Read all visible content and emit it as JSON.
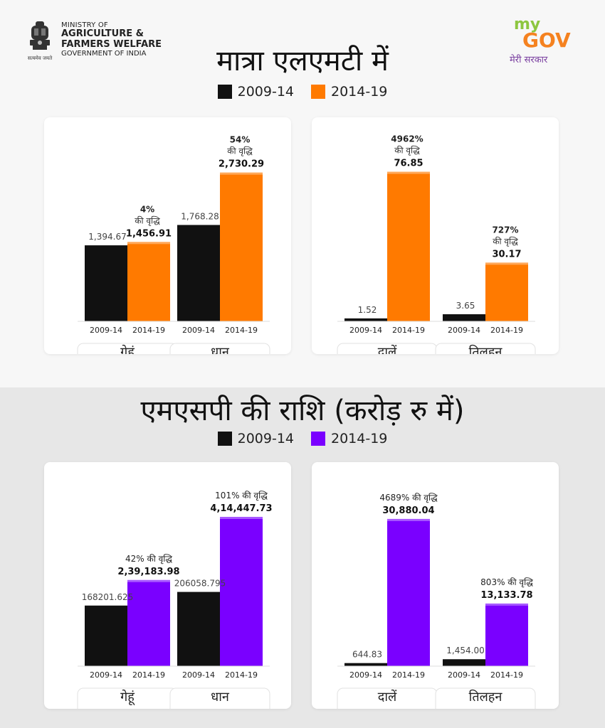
{
  "header": {
    "emblem_caption": "सत्यमेव जयते",
    "ministry_line1": "MINISTRY OF",
    "ministry_line2": "AGRICULTURE &",
    "ministry_line3": "FARMERS WELFARE",
    "ministry_line4": "GOVERNMENT OF INDIA",
    "mygov_my": "my",
    "mygov_gov": "GOV",
    "mygov_tagline": "मेरी सरकार"
  },
  "colors": {
    "black": "#111111",
    "orange": "#ff7a00",
    "purple": "#7a00ff",
    "mygov_green": "#8dc63f",
    "mygov_orange": "#f58220"
  },
  "section1": {
    "title": "मात्रा एलएमटी में",
    "legend": [
      {
        "label": "2009-14",
        "color": "#111111"
      },
      {
        "label": "2014-19",
        "color": "#ff7a00"
      }
    ]
  },
  "section2": {
    "title": "एमएसपी की राशि (करोड़ रु में)",
    "legend": [
      {
        "label": "2009-14",
        "color": "#111111"
      },
      {
        "label": "2014-19",
        "color": "#7a00ff"
      }
    ]
  },
  "chart_data": [
    {
      "type": "bar",
      "section": "section1",
      "categories": [
        "गेहूं",
        "धान"
      ],
      "x_tick_labels": [
        "2009-14",
        "2014-19"
      ],
      "series": [
        {
          "name": "2009-14",
          "values": [
            1394.67,
            1768.28
          ],
          "labels": [
            "1,394.67",
            "1,768.28"
          ]
        },
        {
          "name": "2014-19",
          "values": [
            1456.91,
            2730.29
          ],
          "labels": [
            "1,456.91",
            "2,730.29"
          ]
        }
      ],
      "growth_labels": [
        [
          "4%",
          "की वृद्धि"
        ],
        [
          "54%",
          "की वृद्धि"
        ]
      ],
      "ylim": [
        0,
        3000
      ]
    },
    {
      "type": "bar",
      "section": "section1",
      "categories": [
        "दालें",
        "तिलहन"
      ],
      "x_tick_labels": [
        "2009-14",
        "2014-19"
      ],
      "series": [
        {
          "name": "2009-14",
          "values": [
            1.52,
            3.65
          ],
          "labels": [
            "1.52",
            "3.65"
          ]
        },
        {
          "name": "2014-19",
          "values": [
            76.85,
            30.17
          ],
          "labels": [
            "76.85",
            "30.17"
          ]
        }
      ],
      "growth_labels": [
        [
          "4962%",
          "की वृद्धि"
        ],
        [
          "727%",
          "की वृद्धि"
        ]
      ],
      "ylim": [
        0,
        84
      ]
    },
    {
      "type": "bar",
      "section": "section2",
      "categories": [
        "गेहूं",
        "धान"
      ],
      "x_tick_labels": [
        "2009-14",
        "2014-19"
      ],
      "series": [
        {
          "name": "2009-14",
          "values": [
            168201.625,
            206058.795
          ],
          "labels": [
            "168201.625",
            "206058.795"
          ]
        },
        {
          "name": "2014-19",
          "values": [
            239183.98,
            414447.73
          ],
          "labels": [
            "2,39,183.98",
            "4,14,447.73"
          ]
        }
      ],
      "growth_labels": [
        [
          "42% की वृद्धि"
        ],
        [
          "101% की वृद्धि"
        ]
      ],
      "ylim": [
        0,
        450000
      ]
    },
    {
      "type": "bar",
      "section": "section2",
      "categories": [
        "दालें",
        "तिलहन"
      ],
      "x_tick_labels": [
        "2009-14",
        "2014-19"
      ],
      "series": [
        {
          "name": "2009-14",
          "values": [
            644.83,
            1454.0
          ],
          "labels": [
            "644.83",
            "1,454.00"
          ]
        },
        {
          "name": "2014-19",
          "values": [
            30880.04,
            13133.78
          ],
          "labels": [
            "30,880.04",
            "13,133.78"
          ]
        }
      ],
      "growth_labels": [
        [
          "4689% की वृद्धि"
        ],
        [
          "803% की वृद्धि"
        ]
      ],
      "ylim": [
        0,
        34000
      ]
    }
  ]
}
